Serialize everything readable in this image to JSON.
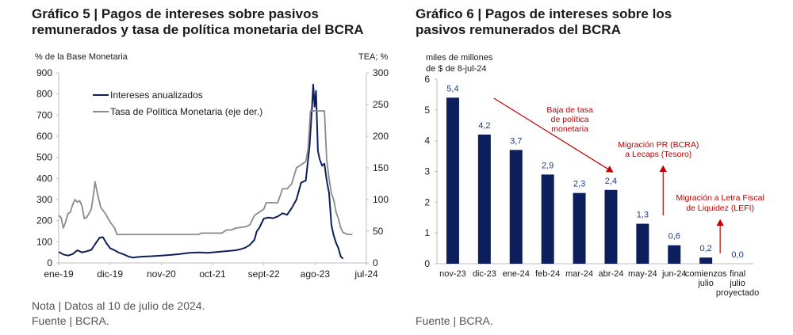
{
  "chart_data": [
    {
      "type": "line",
      "title": "Gráfico 5 | Pagos de intereses sobre pasivos",
      "title_line2": "remunerados y tasa de política monetaria del BCRA",
      "ylabel_left": "% de la Base Monetaria",
      "ylabel_right": "TEA; %",
      "ylim_left": [
        0,
        900
      ],
      "yticks_left": [
        "0",
        "100",
        "200",
        "300",
        "400",
        "500",
        "600",
        "700",
        "800",
        "900"
      ],
      "ylim_right": [
        0,
        300
      ],
      "yticks_right": [
        "0",
        "50",
        "100",
        "150",
        "200",
        "250",
        "300"
      ],
      "xlim": [
        0,
        66
      ],
      "xticks": [
        {
          "label": "ene-19",
          "x": 0
        },
        {
          "label": "dic-19",
          "x": 11
        },
        {
          "label": "nov-20",
          "x": 22
        },
        {
          "label": "oct-21",
          "x": 33
        },
        {
          "label": "sept-22",
          "x": 44
        },
        {
          "label": "ago-23",
          "x": 55
        },
        {
          "label": "jul-24",
          "x": 66
        }
      ],
      "legend": "top-left",
      "series": [
        {
          "name": "Intereses anualizados",
          "axis": "left",
          "color": "#0c1f5c",
          "points": [
            [
              0,
              52
            ],
            [
              1,
              40
            ],
            [
              2,
              35
            ],
            [
              3,
              42
            ],
            [
              4,
              60
            ],
            [
              5,
              50
            ],
            [
              6,
              55
            ],
            [
              7,
              62
            ],
            [
              8,
              95
            ],
            [
              8.8,
              120
            ],
            [
              9.5,
              122
            ],
            [
              10.2,
              95
            ],
            [
              11,
              70
            ],
            [
              12,
              60
            ],
            [
              13,
              48
            ],
            [
              14,
              40
            ],
            [
              15,
              30
            ],
            [
              16,
              25
            ],
            [
              17,
              28
            ],
            [
              18,
              30
            ],
            [
              20,
              32
            ],
            [
              22,
              35
            ],
            [
              24,
              38
            ],
            [
              26,
              42
            ],
            [
              28,
              48
            ],
            [
              30,
              50
            ],
            [
              32,
              48
            ],
            [
              34,
              52
            ],
            [
              36,
              56
            ],
            [
              38,
              60
            ],
            [
              39,
              65
            ],
            [
              40,
              72
            ],
            [
              41,
              85
            ],
            [
              42,
              110
            ],
            [
              42.5,
              150
            ],
            [
              43,
              165
            ],
            [
              44,
              210
            ],
            [
              45,
              215
            ],
            [
              46,
              212
            ],
            [
              47,
              220
            ],
            [
              48,
              235
            ],
            [
              49,
              228
            ],
            [
              50,
              260
            ],
            [
              51,
              300
            ],
            [
              52,
              380
            ],
            [
              53,
              390
            ],
            [
              53.8,
              550
            ],
            [
              54.3,
              720
            ],
            [
              54.6,
              845
            ],
            [
              54.9,
              740
            ],
            [
              55.2,
              815
            ],
            [
              55.6,
              530
            ],
            [
              56,
              490
            ],
            [
              56.5,
              460
            ],
            [
              57,
              470
            ],
            [
              57.5,
              390
            ],
            [
              58,
              330
            ],
            [
              58.5,
              180
            ],
            [
              59,
              130
            ],
            [
              59.5,
              95
            ],
            [
              60,
              70
            ],
            [
              60.5,
              30
            ],
            [
              61,
              20
            ]
          ]
        },
        {
          "name": "Tasa de Política Monetaria (eje der.)",
          "axis": "right",
          "color": "#8a8a8a",
          "points": [
            [
              0,
              75
            ],
            [
              0.5,
              72
            ],
            [
              1,
              55
            ],
            [
              1.5,
              65
            ],
            [
              2,
              78
            ],
            [
              2.5,
              80
            ],
            [
              3,
              92
            ],
            [
              3.5,
              100
            ],
            [
              4,
              96
            ],
            [
              4.5,
              98
            ],
            [
              5,
              90
            ],
            [
              5.5,
              70
            ],
            [
              6,
              72
            ],
            [
              6.5,
              78
            ],
            [
              7,
              85
            ],
            [
              7.5,
              110
            ],
            [
              7.8,
              128
            ],
            [
              8.3,
              110
            ],
            [
              9,
              88
            ],
            [
              10,
              78
            ],
            [
              11,
              65
            ],
            [
              12,
              55
            ],
            [
              12.5,
              45
            ],
            [
              13,
              45
            ],
            [
              20,
              45
            ],
            [
              30,
              45
            ],
            [
              30.5,
              47
            ],
            [
              35,
              47
            ],
            [
              36,
              52
            ],
            [
              37,
              52
            ],
            [
              38,
              55
            ],
            [
              39,
              56
            ],
            [
              40,
              57
            ],
            [
              41,
              60
            ],
            [
              42,
              75
            ],
            [
              43,
              80
            ],
            [
              44,
              85
            ],
            [
              44.5,
              95
            ],
            [
              45,
              95
            ],
            [
              46,
              95
            ],
            [
              47,
              95
            ],
            [
              48,
              117
            ],
            [
              49,
              117
            ],
            [
              50,
              125
            ],
            [
              51,
              150
            ],
            [
              52,
              155
            ],
            [
              53,
              160
            ],
            [
              53.5,
              180
            ],
            [
              54,
              240
            ],
            [
              57,
              240
            ],
            [
              57.5,
              162
            ],
            [
              58,
              133
            ],
            [
              58.5,
              110
            ],
            [
              59,
              100
            ],
            [
              59.5,
              80
            ],
            [
              60,
              70
            ],
            [
              60.5,
              55
            ],
            [
              61,
              48
            ],
            [
              62,
              45
            ],
            [
              63,
              45
            ]
          ]
        }
      ],
      "note": "Nota | Datos al 10 de julio de 2024.",
      "source": "Fuente | BCRA."
    },
    {
      "type": "bar",
      "title": "Gráfico 6 | Pagos de intereses sobre los",
      "title_line2": "pasivos remunerados del BCRA",
      "ylabel_line1": "miles de millones",
      "ylabel_line2": "de $ de 8-jul-24",
      "ylim": [
        0,
        6
      ],
      "yticks": [
        "0",
        "1",
        "2",
        "3",
        "4",
        "5",
        "6"
      ],
      "categories": [
        [
          "nov-23"
        ],
        [
          "dic-23"
        ],
        [
          "ene-24"
        ],
        [
          "feb-24"
        ],
        [
          "mar-24"
        ],
        [
          "abr-24"
        ],
        [
          "may-24"
        ],
        [
          "jun-24"
        ],
        [
          "comienzos",
          "julio"
        ],
        [
          "final",
          "julio",
          "proyectado"
        ]
      ],
      "values": [
        5.4,
        4.2,
        3.7,
        2.9,
        2.3,
        2.4,
        1.3,
        0.6,
        0.2,
        0.0
      ],
      "value_labels": [
        "5,4",
        "4,2",
        "3,7",
        "2,9",
        "2,3",
        "2,4",
        "1,3",
        "0,6",
        "0,2",
        "0,0"
      ],
      "bar_color": "#0c1f5c",
      "annotation_color": "#c00000",
      "annotations": [
        {
          "lines": [
            "Baja de tasa",
            "de política",
            "monetaria"
          ]
        },
        {
          "lines": [
            "Migración PR (BCRA)",
            "a Lecaps (Tesoro)"
          ]
        },
        {
          "lines": [
            "Migración a Letra Fiscal",
            "de Liquidez (LEFI)"
          ]
        }
      ],
      "source": "Fuente | BCRA."
    }
  ]
}
